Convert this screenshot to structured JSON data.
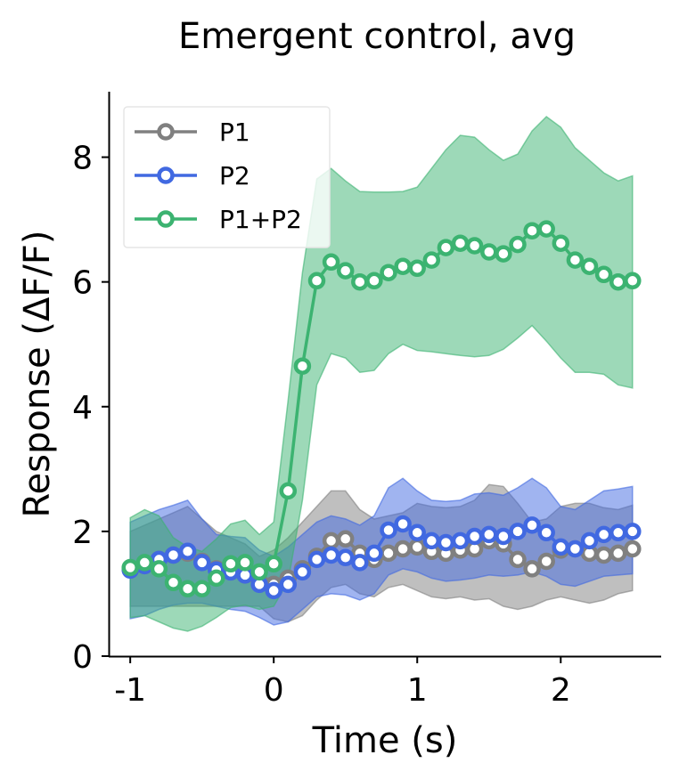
{
  "chart_data": {
    "type": "line",
    "title": "Emergent control, avg",
    "xlabel": "Time (s)",
    "ylabel": "Response (ΔF/F)",
    "xlim": [
      -1.15,
      2.7
    ],
    "ylim": [
      0,
      9.05
    ],
    "xticks": [
      -1,
      0,
      1,
      2
    ],
    "xtick_labels": [
      "-1",
      "0",
      "1",
      "2"
    ],
    "yticks": [
      0,
      2,
      4,
      6,
      8
    ],
    "ytick_labels": [
      "0",
      "2",
      "4",
      "6",
      "8"
    ],
    "grid": false,
    "legend_position": "top-left",
    "x": [
      -1.0,
      -0.9,
      -0.8,
      -0.7,
      -0.6,
      -0.5,
      -0.4,
      -0.3,
      -0.2,
      -0.1,
      0.0,
      0.1,
      0.2,
      0.3,
      0.4,
      0.5,
      0.6,
      0.7,
      0.8,
      0.9,
      1.0,
      1.1,
      1.2,
      1.3,
      1.4,
      1.5,
      1.6,
      1.7,
      1.8,
      1.9,
      2.0,
      2.1,
      2.2,
      2.3,
      2.4,
      2.5
    ],
    "series": [
      {
        "name": "P1",
        "color": "#808080",
        "values": [
          1.4,
          1.45,
          1.55,
          1.62,
          1.65,
          1.52,
          1.4,
          1.35,
          1.3,
          1.2,
          1.15,
          1.25,
          1.4,
          1.6,
          1.85,
          1.88,
          1.65,
          1.55,
          1.65,
          1.72,
          1.75,
          1.68,
          1.65,
          1.7,
          1.72,
          1.85,
          1.8,
          1.55,
          1.4,
          1.52,
          1.7,
          1.72,
          1.65,
          1.62,
          1.65,
          1.72
        ],
        "lower": [
          0.8,
          0.8,
          0.8,
          0.8,
          0.8,
          0.8,
          0.8,
          0.8,
          0.8,
          0.8,
          0.6,
          0.55,
          0.65,
          0.9,
          1.1,
          1.15,
          1.0,
          0.95,
          1.1,
          1.15,
          1.05,
          0.95,
          0.92,
          0.95,
          0.9,
          0.92,
          0.8,
          0.75,
          0.8,
          0.9,
          0.95,
          0.9,
          0.85,
          0.9,
          1.0,
          1.05
        ],
        "upper": [
          2.0,
          2.1,
          2.2,
          2.3,
          2.4,
          2.2,
          2.0,
          1.9,
          1.8,
          1.6,
          1.7,
          1.9,
          2.15,
          2.4,
          2.65,
          2.65,
          2.35,
          2.2,
          2.25,
          2.3,
          2.45,
          2.4,
          2.38,
          2.4,
          2.5,
          2.75,
          2.72,
          2.45,
          2.15,
          2.2,
          2.4,
          2.45,
          2.45,
          2.38,
          2.35,
          2.42
        ]
      },
      {
        "name": "P2",
        "color": "#4169e1",
        "values": [
          1.38,
          1.45,
          1.55,
          1.62,
          1.68,
          1.5,
          1.38,
          1.35,
          1.3,
          1.15,
          1.05,
          1.15,
          1.35,
          1.55,
          1.62,
          1.58,
          1.5,
          1.65,
          2.02,
          2.12,
          1.98,
          1.85,
          1.82,
          1.85,
          1.92,
          1.95,
          1.92,
          2.0,
          2.1,
          1.98,
          1.75,
          1.72,
          1.85,
          1.95,
          1.98,
          2.0
        ],
        "lower": [
          0.6,
          0.65,
          0.75,
          0.82,
          0.85,
          0.85,
          0.8,
          0.75,
          0.72,
          0.62,
          0.5,
          0.55,
          0.75,
          0.95,
          1.0,
          0.98,
          0.9,
          1.0,
          1.3,
          1.4,
          1.35,
          1.25,
          1.2,
          1.22,
          1.25,
          1.3,
          1.28,
          1.3,
          1.35,
          1.28,
          1.15,
          1.12,
          1.2,
          1.28,
          1.3,
          1.32
        ],
        "upper": [
          2.15,
          2.25,
          2.35,
          2.42,
          2.5,
          2.2,
          1.95,
          1.92,
          1.9,
          1.7,
          1.6,
          1.75,
          1.95,
          2.15,
          2.25,
          2.2,
          2.1,
          2.25,
          2.7,
          2.85,
          2.65,
          2.5,
          2.48,
          2.5,
          2.6,
          2.62,
          2.58,
          2.7,
          2.85,
          2.7,
          2.4,
          2.35,
          2.5,
          2.65,
          2.68,
          2.72
        ]
      },
      {
        "name": "P1+P2",
        "color": "#3cb371",
        "values": [
          1.42,
          1.5,
          1.4,
          1.18,
          1.08,
          1.08,
          1.25,
          1.48,
          1.5,
          1.35,
          1.48,
          2.65,
          4.65,
          6.02,
          6.32,
          6.18,
          6.0,
          6.02,
          6.15,
          6.25,
          6.22,
          6.35,
          6.55,
          6.62,
          6.58,
          6.48,
          6.45,
          6.6,
          6.82,
          6.85,
          6.62,
          6.35,
          6.25,
          6.12,
          6.0,
          6.02
        ],
        "lower": [
          0.62,
          0.65,
          0.55,
          0.45,
          0.4,
          0.48,
          0.62,
          0.78,
          0.82,
          0.75,
          0.8,
          1.2,
          2.5,
          4.35,
          4.85,
          4.78,
          4.55,
          4.58,
          4.85,
          5.0,
          4.9,
          4.88,
          4.85,
          4.82,
          4.8,
          4.82,
          4.92,
          5.1,
          5.3,
          5.05,
          4.78,
          4.55,
          4.55,
          4.52,
          4.35,
          4.3
        ],
        "upper": [
          2.22,
          2.35,
          2.25,
          1.9,
          1.75,
          1.68,
          1.88,
          2.12,
          2.18,
          1.95,
          2.15,
          4.1,
          6.15,
          7.65,
          7.82,
          7.62,
          7.45,
          7.44,
          7.44,
          7.45,
          7.52,
          7.82,
          8.12,
          8.35,
          8.32,
          8.12,
          7.95,
          8.05,
          8.42,
          8.65,
          8.48,
          8.15,
          7.95,
          7.75,
          7.62,
          7.7
        ]
      }
    ]
  }
}
